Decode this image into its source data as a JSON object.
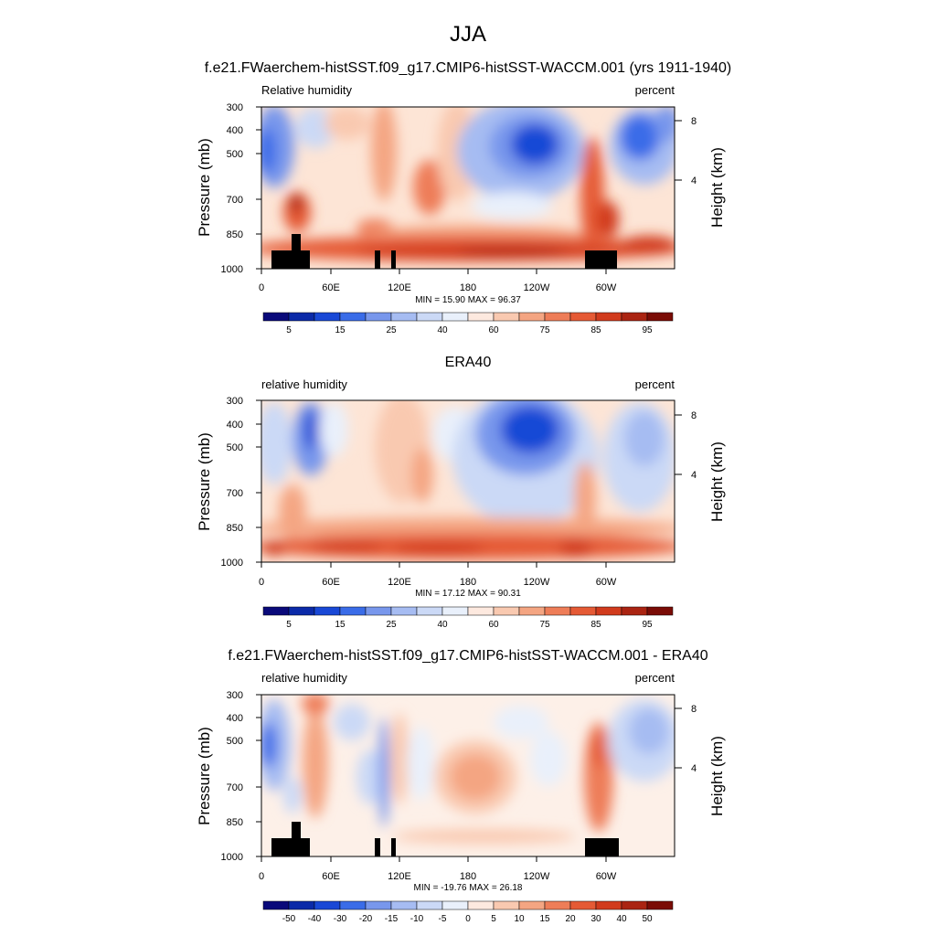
{
  "figure": {
    "title": "JJA"
  },
  "chart_data": [
    {
      "type": "heatmap",
      "title": "f.e21.FWaerchem-histSST.f09_g17.CMIP6-histSST-WACCM.001 (yrs 1911-1940)",
      "left_label": "Relative humidity",
      "right_label": "percent",
      "ylabel": "Pressure (mb)",
      "ylabel_right": "Height (km)",
      "xticks": [
        "0",
        "60E",
        "120E",
        "180",
        "120W",
        "60W"
      ],
      "yticks": [
        "300",
        "400",
        "500",
        "700",
        "850",
        "1000"
      ],
      "yticks_right": [
        "8",
        "4"
      ],
      "stats": "MIN =  15.90  MAX =  96.37",
      "colorbar_labels": [
        "5",
        "15",
        "25",
        "40",
        "60",
        "75",
        "85",
        "95"
      ],
      "colorbar_levels": [
        0,
        5,
        10,
        15,
        20,
        25,
        30,
        40,
        50,
        60,
        70,
        75,
        80,
        85,
        90,
        95,
        100
      ],
      "min": 15.9,
      "max": 96.37,
      "terrain": true
    },
    {
      "type": "heatmap",
      "title": "ERA40",
      "left_label": "relative humidity",
      "right_label": "percent",
      "ylabel": "Pressure (mb)",
      "ylabel_right": "Height (km)",
      "xticks": [
        "0",
        "60E",
        "120E",
        "180",
        "120W",
        "60W"
      ],
      "yticks": [
        "300",
        "400",
        "500",
        "700",
        "850",
        "1000"
      ],
      "yticks_right": [
        "8",
        "4"
      ],
      "stats": "MIN =  17.12  MAX =  90.31",
      "colorbar_labels": [
        "5",
        "15",
        "25",
        "40",
        "60",
        "75",
        "85",
        "95"
      ],
      "colorbar_levels": [
        0,
        5,
        10,
        15,
        20,
        25,
        30,
        40,
        50,
        60,
        70,
        75,
        80,
        85,
        90,
        95,
        100
      ],
      "min": 17.12,
      "max": 90.31,
      "terrain": false
    },
    {
      "type": "heatmap",
      "title": "f.e21.FWaerchem-histSST.f09_g17.CMIP6-histSST-WACCM.001 - ERA40",
      "left_label": "relative humidity",
      "right_label": "percent",
      "ylabel": "Pressure (mb)",
      "ylabel_right": "Height (km)",
      "xticks": [
        "0",
        "60E",
        "120E",
        "180",
        "120W",
        "60W"
      ],
      "yticks": [
        "300",
        "400",
        "500",
        "700",
        "850",
        "1000"
      ],
      "yticks_right": [
        "8",
        "4"
      ],
      "stats": "MIN = -19.76  MAX =  26.18",
      "colorbar_labels": [
        "-50",
        "-40",
        "-30",
        "-20",
        "-15",
        "-10",
        "-5",
        "0",
        "5",
        "10",
        "15",
        "20",
        "30",
        "40",
        "50"
      ],
      "colorbar_levels": [
        -60,
        -50,
        -40,
        -30,
        -20,
        -15,
        -10,
        -5,
        0,
        5,
        10,
        15,
        20,
        30,
        40,
        50,
        60
      ],
      "min": -19.76,
      "max": 26.18,
      "terrain": true
    }
  ],
  "colorbar_colors": [
    "#0a0a7a",
    "#0b2aa8",
    "#1948d6",
    "#3a6ce8",
    "#7897ec",
    "#a6bcf2",
    "#cbd9f6",
    "#e9f0fb",
    "#fde9df",
    "#f9c9b0",
    "#f4a582",
    "#ee7d58",
    "#e55a35",
    "#d13b1d",
    "#aa2412",
    "#7a0c06"
  ]
}
